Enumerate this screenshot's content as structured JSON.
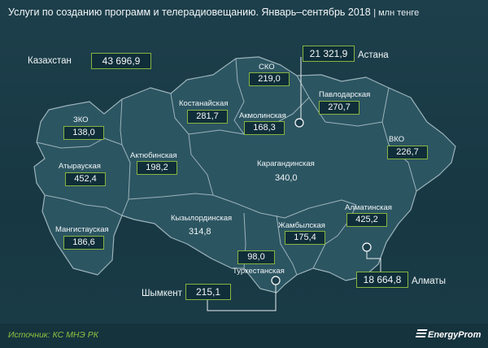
{
  "title": "Услуги по созданию программ и телерадиовещанию. Январь–сентябрь 2018",
  "unit": "млн тенге",
  "total": {
    "label": "Казахстан",
    "value": "43 696,9"
  },
  "regions": {
    "zko": {
      "name": "ЗКО",
      "value": "138,0"
    },
    "atyrau": {
      "name": "Атырауская",
      "value": "452,4"
    },
    "mangystau": {
      "name": "Мангистауская",
      "value": "186,6"
    },
    "aktobe": {
      "name": "Актюбинская",
      "value": "198,2"
    },
    "kostanay": {
      "name": "Костанайская",
      "value": "281,7"
    },
    "sko": {
      "name": "СКО",
      "value": "219,0"
    },
    "akmola": {
      "name": "Акмолинская",
      "value": "168,3"
    },
    "pavlodar": {
      "name": "Павлодарская",
      "value": "270,7"
    },
    "vko": {
      "name": "ВКО",
      "value": "226,7"
    },
    "karaganda": {
      "name": "Карагандинская",
      "value": "340,0"
    },
    "kyzylorda": {
      "name": "Кызылординская",
      "value": "314,8"
    },
    "zhambyl": {
      "name": "Жамбылская",
      "value": "175,4"
    },
    "almaty_region": {
      "name": "Алматинская",
      "value": "425,2"
    },
    "turkestan": {
      "name": "Туркестанская",
      "value": "98,0"
    }
  },
  "cities": {
    "astana": {
      "name": "Астана",
      "value": "21 321,9"
    },
    "almaty": {
      "name": "Алматы",
      "value": "18 664,8"
    },
    "shymkent": {
      "name": "Шымкент",
      "value": "215,1"
    }
  },
  "source": "Источник: КС МНЭ РК",
  "brand": "EnergyProm",
  "colors": {
    "background": "#1d3f4b",
    "region_fill": "#2c5562",
    "border": "#9bb3ba",
    "accent": "#86b441"
  }
}
